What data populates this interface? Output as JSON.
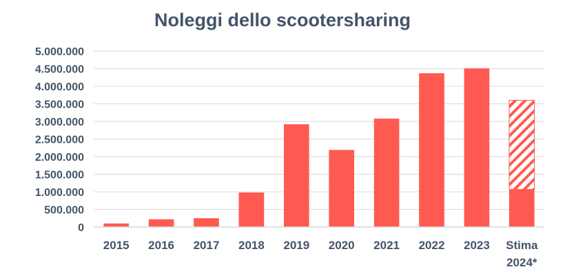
{
  "chart_data": {
    "type": "bar",
    "title": "Noleggi dello scootersharing",
    "xlabel": "",
    "ylabel": "",
    "ylim": [
      0,
      5000000
    ],
    "y_ticks": [
      "0",
      "500.000",
      "1.000.000",
      "1.500.000",
      "2.000.000",
      "2.500.000",
      "3.000.000",
      "3.500.000",
      "4.000.000",
      "4.500.000",
      "5.000.000"
    ],
    "y_tick_values": [
      0,
      500000,
      1000000,
      1500000,
      2000000,
      2500000,
      3000000,
      3500000,
      4000000,
      4500000,
      5000000
    ],
    "grid": true,
    "legend": "none",
    "categories": [
      "2015",
      "2016",
      "2017",
      "2018",
      "2019",
      "2020",
      "2021",
      "2022",
      "2023",
      "Stima 2024*"
    ],
    "category_lines": [
      [
        "2015"
      ],
      [
        "2016"
      ],
      [
        "2017"
      ],
      [
        "2018"
      ],
      [
        "2019"
      ],
      [
        "2020"
      ],
      [
        "2021"
      ],
      [
        "2022"
      ],
      [
        "2023"
      ],
      [
        "Stima",
        "2024*"
      ]
    ],
    "series": [
      {
        "values": [
          100000,
          220000,
          250000,
          980000,
          2920000,
          2190000,
          3080000,
          4370000,
          4510000,
          1070000
        ],
        "color": "#ff5a52",
        "fill": "solid"
      },
      {
        "values": [
          0,
          0,
          0,
          0,
          0,
          0,
          0,
          0,
          0,
          2530000
        ],
        "color": "#ff5a52",
        "fill": "hatched"
      }
    ]
  }
}
